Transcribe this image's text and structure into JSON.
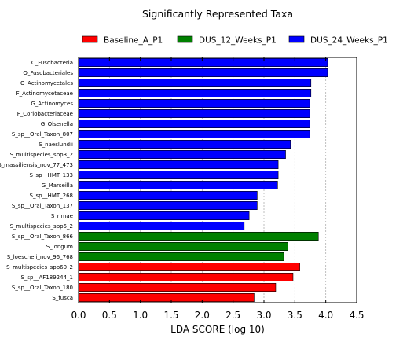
{
  "chart_data": {
    "type": "bar",
    "orientation": "horizontal",
    "title": "Significantly Represented Taxa",
    "xlabel": "LDA SCORE (log 10)",
    "ylabel": "",
    "xlim": [
      0,
      4.5
    ],
    "xticks": [
      "0.0",
      "0.5",
      "1.0",
      "1.5",
      "2.0",
      "2.5",
      "3.0",
      "3.5",
      "4.0",
      "4.5"
    ],
    "grid": "vertical dashed",
    "legend_position": "top",
    "series": [
      {
        "name": "Baseline_A_P1",
        "color": "#ff0000"
      },
      {
        "name": "DUS_12_Weeks_P1",
        "color": "#008000"
      },
      {
        "name": "DUS_24_Weeks_P1",
        "color": "#0000ff"
      }
    ],
    "bars": [
      {
        "label": "C_Fusobacteria",
        "value": 4.03,
        "group": "DUS_24_Weeks_P1"
      },
      {
        "label": "O_Fusobacteriales",
        "value": 4.03,
        "group": "DUS_24_Weeks_P1"
      },
      {
        "label": "O_Actinomycetales",
        "value": 3.76,
        "group": "DUS_24_Weeks_P1"
      },
      {
        "label": "F_Actinomycetaceae",
        "value": 3.76,
        "group": "DUS_24_Weeks_P1"
      },
      {
        "label": "G_Actinomyces",
        "value": 3.74,
        "group": "DUS_24_Weeks_P1"
      },
      {
        "label": "F_Coriobacteriaceae",
        "value": 3.74,
        "group": "DUS_24_Weeks_P1"
      },
      {
        "label": "G_Olsenella",
        "value": 3.74,
        "group": "DUS_24_Weeks_P1"
      },
      {
        "label": "S_sp__Oral_Taxon_807",
        "value": 3.74,
        "group": "DUS_24_Weeks_P1"
      },
      {
        "label": "S_naeslundii",
        "value": 3.43,
        "group": "DUS_24_Weeks_P1"
      },
      {
        "label": "S_multispecies_spp3_2",
        "value": 3.35,
        "group": "DUS_24_Weeks_P1"
      },
      {
        "label": "S_massiliensis_nov_77_473",
        "value": 3.23,
        "group": "DUS_24_Weeks_P1"
      },
      {
        "label": "S_sp__HMT_133",
        "value": 3.23,
        "group": "DUS_24_Weeks_P1"
      },
      {
        "label": "G_Marseilla",
        "value": 3.22,
        "group": "DUS_24_Weeks_P1"
      },
      {
        "label": "S_sp__HMT_268",
        "value": 2.89,
        "group": "DUS_24_Weeks_P1"
      },
      {
        "label": "S_sp__Oral_Taxon_137",
        "value": 2.89,
        "group": "DUS_24_Weeks_P1"
      },
      {
        "label": "S_rimae",
        "value": 2.76,
        "group": "DUS_24_Weeks_P1"
      },
      {
        "label": "S_multispecies_spp5_2",
        "value": 2.68,
        "group": "DUS_24_Weeks_P1"
      },
      {
        "label": "S_sp__Oral_Taxon_866",
        "value": 3.88,
        "group": "DUS_12_Weeks_P1"
      },
      {
        "label": "S_longum",
        "value": 3.39,
        "group": "DUS_12_Weeks_P1"
      },
      {
        "label": "S_loescheii_nov_96_768",
        "value": 3.32,
        "group": "DUS_12_Weeks_P1"
      },
      {
        "label": "S_multispecies_spp60_2",
        "value": 3.58,
        "group": "Baseline_A_P1"
      },
      {
        "label": "S_sp__AF189244_1",
        "value": 3.47,
        "group": "Baseline_A_P1"
      },
      {
        "label": "S_sp__Oral_Taxon_180",
        "value": 3.19,
        "group": "Baseline_A_P1"
      },
      {
        "label": "S_fusca",
        "value": 2.84,
        "group": "Baseline_A_P1"
      }
    ]
  }
}
